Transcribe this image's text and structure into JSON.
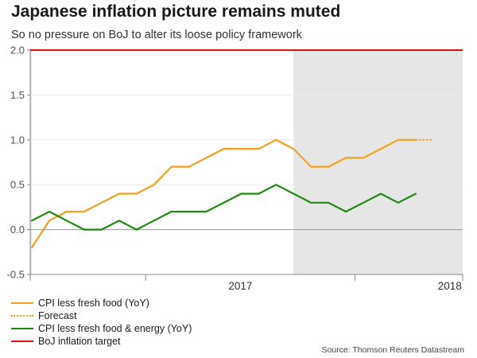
{
  "header": {
    "title": "Japanese inflation picture remains muted",
    "subtitle": "So no pressure on BoJ to alter its loose policy framework"
  },
  "source": "Source: Thomson Reuters Datastream",
  "chart_data": {
    "type": "line",
    "title": "Japanese inflation picture remains muted",
    "subtitle": "So no pressure on BoJ to alter its loose policy framework",
    "xlabel": "",
    "ylabel": "",
    "ylim": [
      -0.5,
      2.0
    ],
    "yticks": [
      -0.5,
      0.0,
      0.5,
      1.0,
      1.5,
      2.0
    ],
    "ytick_labels": [
      "-0.5",
      "0.0",
      "0.5",
      "1.0",
      "1.5",
      "2.0"
    ],
    "x_year_labels": [
      "2017",
      "2018"
    ],
    "x": [
      "2016-06",
      "2016-07",
      "2016-08",
      "2016-09",
      "2016-10",
      "2016-11",
      "2016-12",
      "2017-01",
      "2017-02",
      "2017-03",
      "2017-04",
      "2017-05",
      "2017-06",
      "2017-07",
      "2017-08",
      "2017-09",
      "2017-10",
      "2017-11",
      "2017-12",
      "2018-01",
      "2018-02",
      "2018-03",
      "2018-04",
      "2018-05",
      "2018-06",
      "2018-07",
      "2018-08"
    ],
    "grid": true,
    "legend_position": "bottom-left",
    "shaded_periods": [
      {
        "start": "2016-05",
        "end": "2016-06"
      },
      {
        "start": "2017-09",
        "end": "2018-12"
      }
    ],
    "series": [
      {
        "name": "CPI less fresh food (YoY)",
        "color": "#f5a11c",
        "style": "solid",
        "values": [
          -0.2,
          0.1,
          0.2,
          0.2,
          0.3,
          0.4,
          0.4,
          0.5,
          0.7,
          0.7,
          0.8,
          0.9,
          0.9,
          0.9,
          1.0,
          0.9,
          0.7,
          0.7,
          0.8,
          0.8,
          0.9,
          1.0,
          1.0,
          null,
          null,
          null,
          null
        ]
      },
      {
        "name": "Forecast",
        "color": "#f5a11c",
        "style": "dotted",
        "values": [
          null,
          null,
          null,
          null,
          null,
          null,
          null,
          null,
          null,
          null,
          null,
          null,
          null,
          null,
          null,
          null,
          null,
          null,
          null,
          null,
          null,
          null,
          1.0,
          1.0,
          null,
          null,
          null
        ]
      },
      {
        "name": "CPI less fresh food & energy (YoY)",
        "color": "#1f8a12",
        "style": "solid",
        "values": [
          0.1,
          0.2,
          0.1,
          0.0,
          0.0,
          0.1,
          0.0,
          0.1,
          0.2,
          0.2,
          0.2,
          0.3,
          0.4,
          0.4,
          0.5,
          0.4,
          0.3,
          0.3,
          0.2,
          0.3,
          0.4,
          0.3,
          0.4,
          null,
          null,
          null,
          null
        ]
      },
      {
        "name": "BoJ inflation target",
        "color": "#e3100f",
        "style": "solid",
        "values": [
          2.0,
          2.0,
          2.0,
          2.0,
          2.0,
          2.0,
          2.0,
          2.0,
          2.0,
          2.0,
          2.0,
          2.0,
          2.0,
          2.0,
          2.0,
          2.0,
          2.0,
          2.0,
          2.0,
          2.0,
          2.0,
          2.0,
          2.0,
          2.0,
          2.0,
          2.0,
          2.0
        ]
      }
    ]
  },
  "legend": [
    {
      "label": "CPI less fresh food (YoY)",
      "color": "#f5a11c",
      "style": "solid"
    },
    {
      "label": "Forecast",
      "color": "#f5a11c",
      "style": "dotted"
    },
    {
      "label": "CPI less fresh food & energy (YoY)",
      "color": "#1f8a12",
      "style": "solid"
    },
    {
      "label": "BoJ inflation target",
      "color": "#e3100f",
      "style": "solid"
    }
  ],
  "colors": {
    "shade": "#e6e6e6",
    "axis": "#888888",
    "zero_line": "#9a9a9a",
    "grid": "#ececec"
  }
}
